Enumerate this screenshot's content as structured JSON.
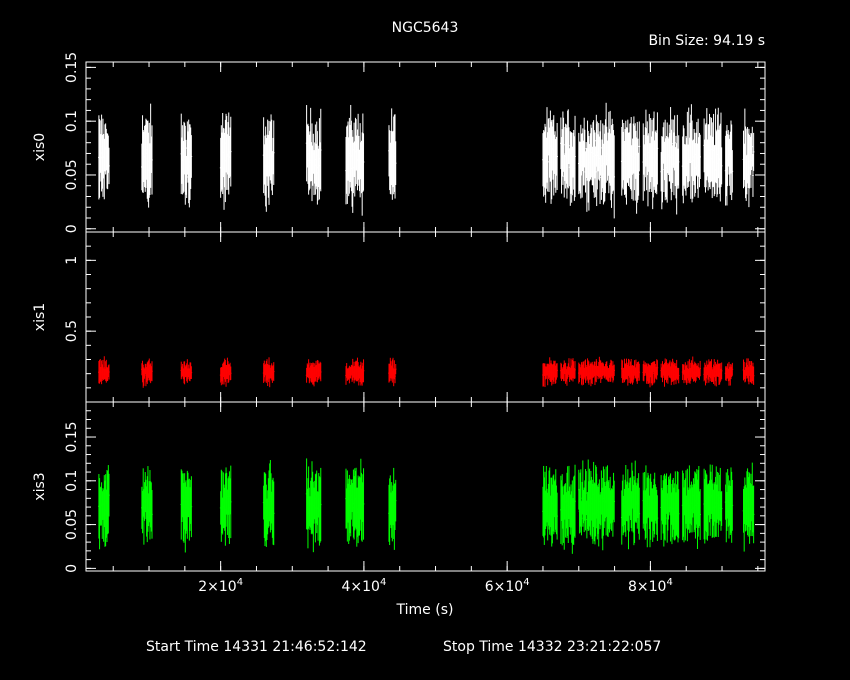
{
  "chart_data": {
    "type": "scatter",
    "title": "NGC5643",
    "bin_size": "Bin Size: 94.19 s",
    "xlabel": "Time (s)",
    "xlim": [
      1200,
      96000
    ],
    "x_ticks": [
      {
        "value": 20000,
        "mant": "2",
        "exp": "4"
      },
      {
        "value": 40000,
        "mant": "4",
        "exp": "4"
      },
      {
        "value": 60000,
        "mant": "6",
        "exp": "4"
      },
      {
        "value": 80000,
        "mant": "8",
        "exp": "4"
      }
    ],
    "segments": [
      [
        3000,
        4500
      ],
      [
        9000,
        10500
      ],
      [
        14500,
        16000
      ],
      [
        20000,
        21500
      ],
      [
        26000,
        27500
      ],
      [
        32000,
        34000
      ],
      [
        37500,
        40000
      ],
      [
        43500,
        44500
      ],
      [
        65000,
        67000
      ],
      [
        67500,
        69500
      ],
      [
        70000,
        72500
      ],
      [
        72500,
        75000
      ],
      [
        76000,
        78500
      ],
      [
        79000,
        81000
      ],
      [
        81500,
        84000
      ],
      [
        84500,
        87000
      ],
      [
        87500,
        90000
      ],
      [
        90500,
        91500
      ],
      [
        93000,
        94500
      ]
    ],
    "footer_start": "Start Time 14331 21:46:52:142",
    "footer_stop": "Stop Time 14332 23:21:22:057",
    "panels": [
      {
        "ylabel": "xis0",
        "color": "#ffffff",
        "ylim": [
          -0.003,
          0.155
        ],
        "mean": 0.065,
        "spread": 0.022,
        "err": 0.028,
        "yticks": [
          "0",
          "0.05",
          "0.1",
          "0.15"
        ],
        "ytick_values": [
          0,
          0.05,
          0.1,
          0.15
        ]
      },
      {
        "ylabel": "xis1",
        "color": "#ff0000",
        "ylim": [
          0,
          1.2
        ],
        "mean": 0.21,
        "spread": 0.045,
        "err": 0.06,
        "yticks": [
          "0.5",
          "1"
        ],
        "ytick_values": [
          0.5,
          1
        ]
      },
      {
        "ylabel": "xis3",
        "color": "#00ff00",
        "ylim": [
          -0.003,
          0.19
        ],
        "mean": 0.072,
        "spread": 0.022,
        "err": 0.03,
        "yticks": [
          "0",
          "0.05",
          "0.1",
          "0.15"
        ],
        "ytick_values": [
          0,
          0.05,
          0.1,
          0.15
        ]
      }
    ]
  }
}
